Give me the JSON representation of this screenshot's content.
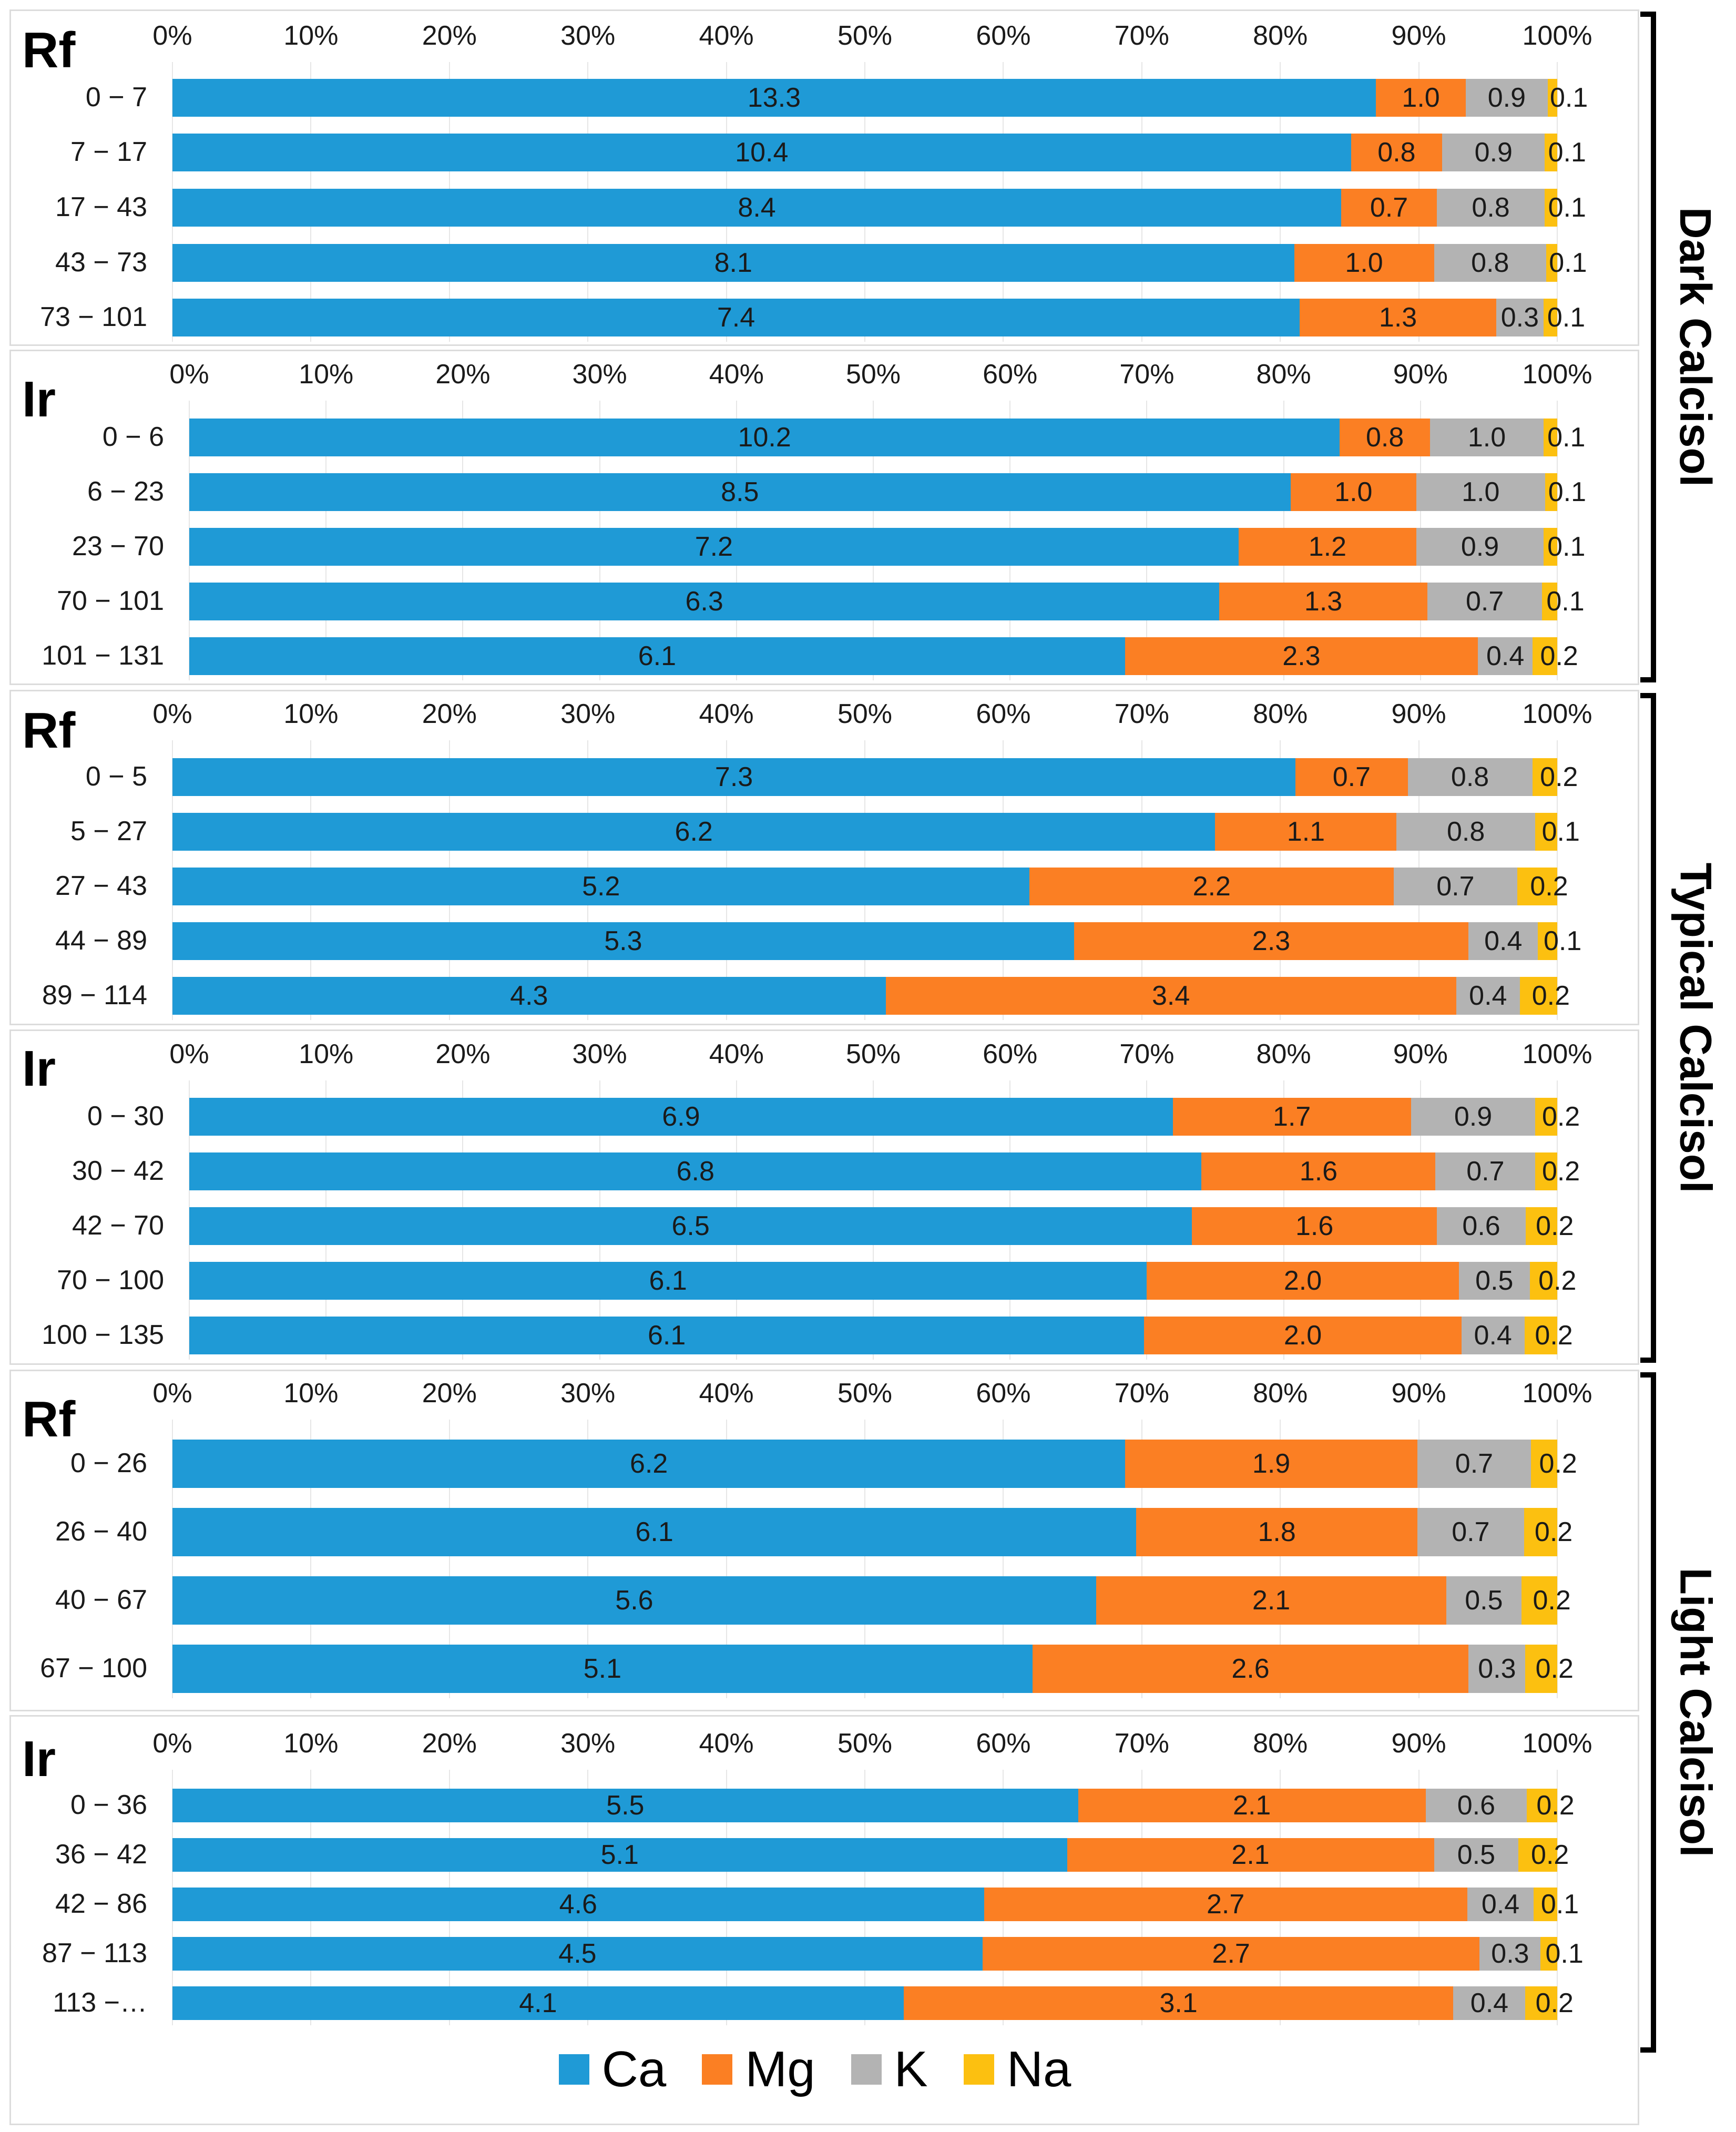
{
  "chart_data": {
    "type": "bar",
    "orientation": "horizontal-stacked-100",
    "colors": {
      "Ca": "#1f9ad6",
      "Mg": "#fb7f23",
      "K": "#b3b3b3",
      "Na": "#fcc010"
    },
    "legend": [
      "Ca",
      "Mg",
      "K",
      "Na"
    ],
    "x_ticks": [
      "0%",
      "10%",
      "20%",
      "30%",
      "40%",
      "50%",
      "60%",
      "70%",
      "80%",
      "90%",
      "100%"
    ],
    "groups": [
      {
        "label": "Dark Calcisol",
        "panels": [
          0,
          1
        ]
      },
      {
        "label": "Typical Calcisol",
        "panels": [
          2,
          3
        ]
      },
      {
        "label": "Light Calcisol",
        "panels": [
          4,
          5
        ]
      }
    ],
    "panels": [
      {
        "site": "Rf",
        "rows": [
          {
            "depth": "0 − 7",
            "Ca": 13.3,
            "Mg": 1.0,
            "K": 0.9,
            "Na": 0.1,
            "pct": [
              86.9,
              6.5,
              5.9,
              0.7
            ]
          },
          {
            "depth": "7 − 17",
            "Ca": 10.4,
            "Mg": 0.8,
            "K": 0.9,
            "Na": 0.1,
            "pct": [
              85.1,
              6.6,
              7.4,
              0.9
            ]
          },
          {
            "depth": "17 − 43",
            "Ca": 8.4,
            "Mg": 0.7,
            "K": 0.8,
            "Na": 0.1,
            "pct": [
              84.4,
              6.9,
              7.8,
              0.9
            ]
          },
          {
            "depth": "43 − 73",
            "Ca": 8.1,
            "Mg": 1.0,
            "K": 0.8,
            "Na": 0.1,
            "pct": [
              81.0,
              10.1,
              8.1,
              0.8
            ]
          },
          {
            "depth": "73 − 101",
            "Ca": 7.4,
            "Mg": 1.3,
            "K": 0.3,
            "Na": 0.1,
            "pct": [
              81.4,
              14.2,
              3.4,
              1.0
            ]
          }
        ]
      },
      {
        "site": "Ir",
        "rows": [
          {
            "depth": "0 − 6",
            "Ca": 10.2,
            "Mg": 0.8,
            "K": 1.0,
            "Na": 0.1,
            "pct": [
              84.1,
              6.6,
              8.3,
              1.0
            ]
          },
          {
            "depth": "6 − 23",
            "Ca": 8.5,
            "Mg": 1.0,
            "K": 1.0,
            "Na": 0.1,
            "pct": [
              80.5,
              9.2,
              9.4,
              0.9
            ]
          },
          {
            "depth": "23 − 70",
            "Ca": 7.2,
            "Mg": 1.2,
            "K": 0.9,
            "Na": 0.1,
            "pct": [
              76.7,
              13.0,
              9.3,
              1.0
            ]
          },
          {
            "depth": "70 − 101",
            "Ca": 6.3,
            "Mg": 1.3,
            "K": 0.7,
            "Na": 0.1,
            "pct": [
              75.3,
              15.2,
              8.4,
              1.1
            ]
          },
          {
            "depth": "101 − 131",
            "Ca": 6.1,
            "Mg": 2.3,
            "K": 0.4,
            "Na": 0.2,
            "pct": [
              68.4,
              25.8,
              4.0,
              1.8
            ]
          }
        ]
      },
      {
        "site": "Rf",
        "rows": [
          {
            "depth": "0 − 5",
            "Ca": 7.3,
            "Mg": 0.7,
            "K": 0.8,
            "Na": 0.2,
            "pct": [
              81.1,
              8.1,
              9.0,
              1.8
            ]
          },
          {
            "depth": "5 − 27",
            "Ca": 6.2,
            "Mg": 1.1,
            "K": 0.8,
            "Na": 0.1,
            "pct": [
              75.3,
              13.1,
              10.0,
              1.6
            ]
          },
          {
            "depth": "27 − 43",
            "Ca": 5.2,
            "Mg": 2.2,
            "K": 0.7,
            "Na": 0.2,
            "pct": [
              61.9,
              26.3,
              8.9,
              2.9
            ]
          },
          {
            "depth": "44 − 89",
            "Ca": 5.3,
            "Mg": 2.3,
            "K": 0.4,
            "Na": 0.1,
            "pct": [
              65.1,
              28.5,
              5.0,
              1.4
            ]
          },
          {
            "depth": "89 − 114",
            "Ca": 4.3,
            "Mg": 3.4,
            "K": 0.4,
            "Na": 0.2,
            "pct": [
              51.5,
              41.2,
              4.6,
              2.7
            ]
          }
        ]
      },
      {
        "site": "Ir",
        "rows": [
          {
            "depth": "0 − 30",
            "Ca": 6.9,
            "Mg": 1.7,
            "K": 0.9,
            "Na": 0.2,
            "pct": [
              71.9,
              17.4,
              9.1,
              1.6
            ]
          },
          {
            "depth": "30 − 42",
            "Ca": 6.8,
            "Mg": 1.6,
            "K": 0.7,
            "Na": 0.2,
            "pct": [
              74.0,
              17.1,
              7.3,
              1.6
            ]
          },
          {
            "depth": "42 − 70",
            "Ca": 6.5,
            "Mg": 1.6,
            "K": 0.6,
            "Na": 0.2,
            "pct": [
              73.3,
              17.9,
              6.5,
              2.3
            ]
          },
          {
            "depth": "70 − 100",
            "Ca": 6.1,
            "Mg": 2.0,
            "K": 0.5,
            "Na": 0.2,
            "pct": [
              70.0,
              22.8,
              5.2,
              2.0
            ]
          },
          {
            "depth": "100 − 135",
            "Ca": 6.1,
            "Mg": 2.0,
            "K": 0.4,
            "Na": 0.2,
            "pct": [
              69.8,
              23.2,
              4.6,
              2.4
            ]
          }
        ]
      },
      {
        "site": "Rf",
        "rows": [
          {
            "depth": "0 − 26",
            "Ca": 6.2,
            "Mg": 1.9,
            "K": 0.7,
            "Na": 0.2,
            "pct": [
              68.8,
              21.1,
              8.2,
              1.9
            ]
          },
          {
            "depth": "26 − 40",
            "Ca": 6.1,
            "Mg": 1.8,
            "K": 0.7,
            "Na": 0.2,
            "pct": [
              69.6,
              20.3,
              7.7,
              2.4
            ]
          },
          {
            "depth": "40 − 67",
            "Ca": 5.6,
            "Mg": 2.1,
            "K": 0.5,
            "Na": 0.2,
            "pct": [
              66.7,
              25.3,
              5.4,
              2.6
            ]
          },
          {
            "depth": "67 − 100",
            "Ca": 5.1,
            "Mg": 2.6,
            "K": 0.3,
            "Na": 0.2,
            "pct": [
              62.1,
              31.5,
              4.1,
              2.3
            ]
          }
        ]
      },
      {
        "site": "Ir",
        "rows": [
          {
            "depth": "0 − 36",
            "Ca": 5.5,
            "Mg": 2.1,
            "K": 0.6,
            "Na": 0.2,
            "pct": [
              65.4,
              25.1,
              7.3,
              2.2
            ]
          },
          {
            "depth": "36 − 42",
            "Ca": 5.1,
            "Mg": 2.1,
            "K": 0.5,
            "Na": 0.2,
            "pct": [
              64.6,
              26.5,
              6.1,
              2.8
            ]
          },
          {
            "depth": "42 − 86",
            "Ca": 4.6,
            "Mg": 2.7,
            "K": 0.4,
            "Na": 0.1,
            "pct": [
              58.6,
              34.9,
              4.8,
              1.7
            ]
          },
          {
            "depth": "87 − 113",
            "Ca": 4.5,
            "Mg": 2.7,
            "K": 0.3,
            "Na": 0.1,
            "pct": [
              58.5,
              35.9,
              4.4,
              1.2
            ]
          },
          {
            "depth": "113 −…",
            "Ca": 4.1,
            "Mg": 3.1,
            "K": 0.4,
            "Na": 0.2,
            "pct": [
              52.8,
              39.7,
              5.2,
              2.3
            ]
          }
        ]
      }
    ]
  }
}
